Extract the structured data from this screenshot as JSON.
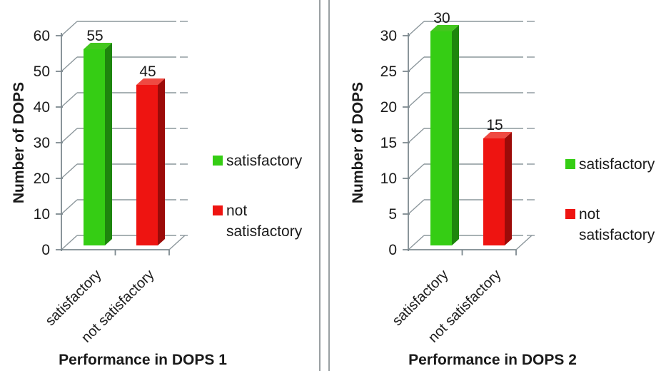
{
  "page": {
    "background": "#ffffff"
  },
  "divider": {
    "color": "#9aa0a3"
  },
  "palette": {
    "grid": "#8c979c",
    "axis": "#7d898f",
    "text": "#1a1a1a",
    "green_front": "#35cd14",
    "green_side": "#1e860d",
    "green_top": "#43c71e",
    "red_front": "#ee1411",
    "red_side": "#9c0b09",
    "red_top": "#ef4a42"
  },
  "chart_data": [
    {
      "type": "bar",
      "title": "Performance in DOPS 1",
      "ylabel": "Number of DOPS",
      "categories": [
        "satisfactory",
        "not satisfactory"
      ],
      "values": [
        55,
        45
      ],
      "data_labels": [
        "55",
        "45"
      ],
      "yticks": [
        0,
        10,
        20,
        30,
        40,
        50,
        60
      ],
      "ylim": [
        0,
        60
      ],
      "grid": true,
      "legend_position": "right",
      "legend": [
        {
          "label": "satisfactory",
          "color": "#35cd14"
        },
        {
          "label": "not satisfactory",
          "color": "#ee1411"
        }
      ]
    },
    {
      "type": "bar",
      "title": "Performance in DOPS 2",
      "ylabel": "Number of DOPS",
      "categories": [
        "satisfactory",
        "not satisfactory"
      ],
      "values": [
        30,
        15
      ],
      "data_labels": [
        "30",
        "15"
      ],
      "yticks": [
        0,
        5,
        10,
        15,
        20,
        25,
        30
      ],
      "ylim": [
        0,
        30
      ],
      "grid": true,
      "legend_position": "right",
      "legend": [
        {
          "label": "satisfactory",
          "color": "#35cd14"
        },
        {
          "label": "not satisfactory",
          "color": "#ee1411"
        }
      ]
    }
  ]
}
